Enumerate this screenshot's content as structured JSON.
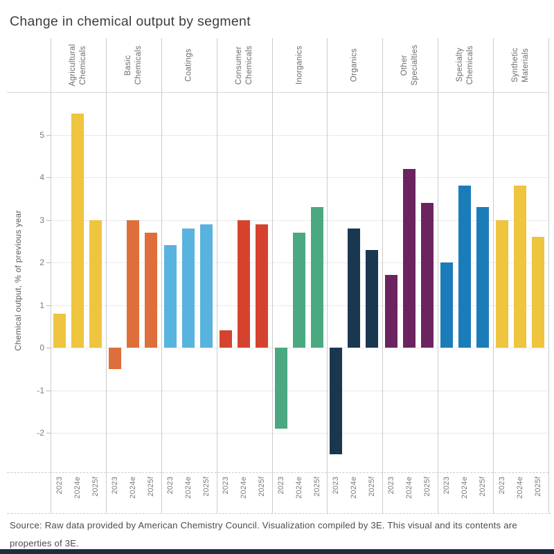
{
  "title": "Change in chemical output by segment",
  "chart_data": {
    "type": "bar",
    "title": "Change in chemical output by segment",
    "ylabel": "Chemical output, % of previous year",
    "categories": [
      "2023",
      "2024e",
      "2025f"
    ],
    "ylim": [
      -3,
      6
    ],
    "yticks": [
      5,
      4,
      3,
      2,
      1,
      0,
      -1,
      -2
    ],
    "grid": true,
    "legend_position": "none",
    "series": [
      {
        "name": "Agricultural Chemicals",
        "label_lines": [
          "Agricultural",
          "Chemicals"
        ],
        "color": "#EFC43E",
        "values": [
          0.8,
          5.5,
          3.0
        ]
      },
      {
        "name": "Basic Chemicals",
        "label_lines": [
          "Basic",
          "Chemicals"
        ],
        "color": "#DE6E3B",
        "values": [
          -0.5,
          3.0,
          2.7
        ]
      },
      {
        "name": "Coatings",
        "label_lines": [
          "Coatings"
        ],
        "color": "#58B3DF",
        "values": [
          2.4,
          2.8,
          2.9
        ]
      },
      {
        "name": "Consumer Chemicals",
        "label_lines": [
          "Consumer",
          "Chemicals"
        ],
        "color": "#D5432F",
        "values": [
          0.4,
          3.0,
          2.9
        ]
      },
      {
        "name": "Inorganics",
        "label_lines": [
          "Inorganics"
        ],
        "color": "#4BA981",
        "values": [
          -1.9,
          2.7,
          3.3
        ]
      },
      {
        "name": "Organics",
        "label_lines": [
          "Organics"
        ],
        "color": "#1A3750",
        "values": [
          -2.5,
          2.8,
          2.3
        ]
      },
      {
        "name": "Other Specialties",
        "label_lines": [
          "Other",
          "Specialties"
        ],
        "color": "#6C2461",
        "values": [
          1.7,
          4.2,
          3.4
        ]
      },
      {
        "name": "Specialty Chemicals",
        "label_lines": [
          "Specialty",
          "Chemicals"
        ],
        "color": "#1B7CBA",
        "values": [
          2.0,
          3.8,
          3.3
        ]
      },
      {
        "name": "Synthetic Materials",
        "label_lines": [
          "Synthetic",
          "Materials"
        ],
        "color": "#EFC43E",
        "values": [
          3.0,
          3.8,
          2.6
        ]
      }
    ]
  },
  "footer": {
    "lines": [
      "Source: Raw data provided by American Chemistry Council. Visualization compiled by 3E. This visual and its contents are",
      "properties of 3E."
    ]
  },
  "colors": {
    "yellow": "#EFC43E",
    "orange": "#DE6E3B",
    "light_blue": "#58B3DF",
    "red": "#D5432F",
    "green": "#4BA981",
    "navy": "#1A3750",
    "purple": "#6C2461",
    "blue": "#1B7CBA",
    "bottom_bar": "#1F2E3D"
  }
}
